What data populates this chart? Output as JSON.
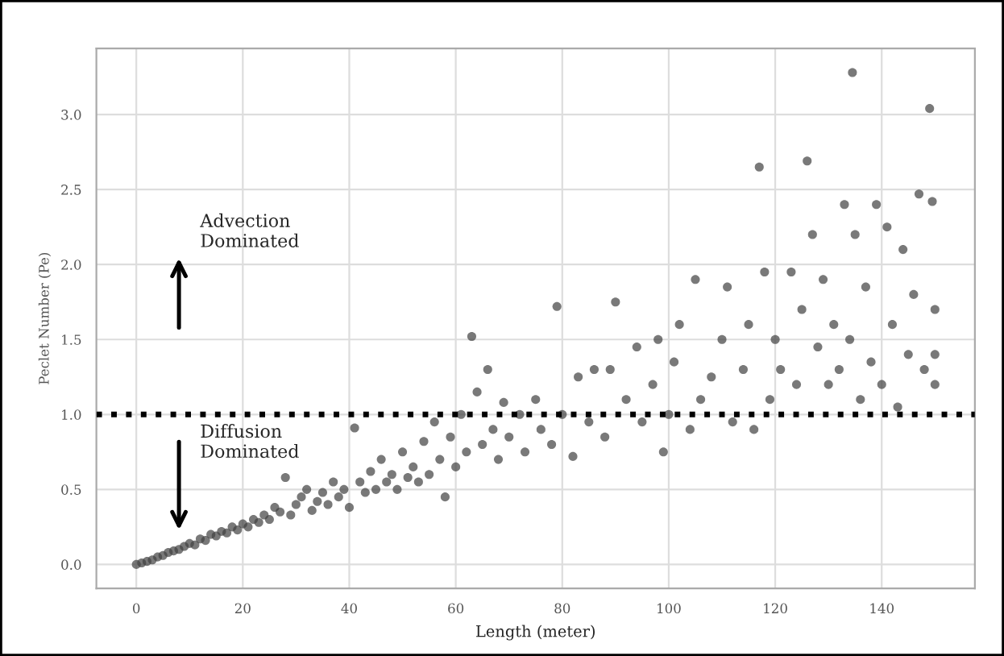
{
  "chart_data": {
    "type": "scatter",
    "xlabel": "Length (meter)",
    "ylabel": "Peclet Number (Pe)",
    "annotations": [
      "Advection\nDominated",
      "Diffusion\nDominated"
    ],
    "xlim": [
      -7.5,
      157.5
    ],
    "ylim": [
      -0.16,
      3.44
    ],
    "xticks": [
      0,
      20,
      40,
      60,
      80,
      100,
      120,
      140
    ],
    "yticks": [
      {
        "value": 0,
        "label": "0.0"
      },
      0.5,
      {
        "value": 1,
        "label": "1.0"
      },
      1.5,
      {
        "value": 2,
        "label": "2.0"
      },
      2.5,
      {
        "value": 3,
        "label": "3.0"
      }
    ],
    "grid": true,
    "marker": "circle",
    "ref_lines": [
      {
        "axis": "y",
        "value": 1.0,
        "color": "#000000",
        "line_style": "dotted"
      }
    ],
    "series": [
      {
        "color": "#404040",
        "x": [
          0,
          1,
          2,
          3,
          4,
          5,
          6,
          7,
          8,
          9,
          10,
          11,
          12,
          13,
          14,
          15,
          16,
          17,
          18,
          19,
          20,
          21,
          22,
          23,
          24,
          25,
          26,
          27,
          28,
          29,
          30,
          31,
          32,
          33,
          34,
          35,
          36,
          37,
          38,
          39,
          40,
          41,
          42,
          43,
          44,
          45,
          46,
          47,
          48,
          49,
          50,
          51,
          52,
          53,
          54,
          55,
          56,
          57,
          58,
          59,
          60,
          61,
          62,
          63,
          64,
          65,
          66,
          67,
          68,
          69,
          70,
          72,
          73,
          75,
          76,
          78,
          79,
          80,
          82,
          83,
          85,
          86,
          88,
          89,
          90,
          92,
          94,
          95,
          97,
          98,
          99,
          100,
          101,
          102,
          104,
          105,
          106,
          108,
          110,
          111,
          112,
          114,
          115,
          116,
          117,
          118,
          119,
          120,
          121,
          123,
          124,
          125,
          126,
          127,
          128,
          129,
          130,
          131,
          132,
          133,
          134,
          134.5,
          135,
          136,
          137,
          138,
          139,
          140,
          141,
          142,
          143,
          144,
          145,
          146,
          147,
          148,
          149,
          149.5,
          150,
          150,
          150
        ],
        "values": [
          0,
          0.01,
          0.02,
          0.03,
          0.05,
          0.06,
          0.08,
          0.09,
          0.1,
          0.12,
          0.14,
          0.13,
          0.17,
          0.16,
          0.2,
          0.19,
          0.22,
          0.21,
          0.25,
          0.23,
          0.27,
          0.25,
          0.3,
          0.28,
          0.33,
          0.3,
          0.38,
          0.35,
          0.58,
          0.33,
          0.4,
          0.45,
          0.5,
          0.36,
          0.42,
          0.48,
          0.4,
          0.55,
          0.45,
          0.5,
          0.38,
          0.91,
          0.55,
          0.48,
          0.62,
          0.5,
          0.7,
          0.55,
          0.6,
          0.5,
          0.75,
          0.58,
          0.65,
          0.55,
          0.82,
          0.6,
          0.95,
          0.7,
          0.45,
          0.85,
          0.65,
          1.0,
          0.75,
          1.52,
          1.15,
          0.8,
          1.3,
          0.9,
          0.7,
          1.08,
          0.85,
          1.0,
          0.75,
          1.1,
          0.9,
          0.8,
          1.72,
          1.0,
          0.72,
          1.25,
          0.95,
          1.3,
          0.85,
          1.3,
          1.75,
          1.1,
          1.45,
          0.95,
          1.2,
          1.5,
          0.75,
          1.0,
          1.35,
          1.6,
          0.9,
          1.9,
          1.1,
          1.25,
          1.5,
          1.85,
          0.95,
          1.3,
          1.6,
          0.9,
          2.65,
          1.95,
          1.1,
          1.5,
          1.3,
          1.95,
          1.2,
          1.7,
          2.69,
          2.2,
          1.45,
          1.9,
          1.2,
          1.6,
          1.3,
          2.4,
          1.5,
          3.28,
          2.2,
          1.1,
          1.85,
          1.35,
          2.4,
          1.2,
          2.25,
          1.6,
          1.05,
          2.1,
          1.4,
          1.8,
          2.47,
          1.3,
          3.04,
          2.42,
          1.2,
          1.7,
          1.4
        ]
      }
    ]
  }
}
